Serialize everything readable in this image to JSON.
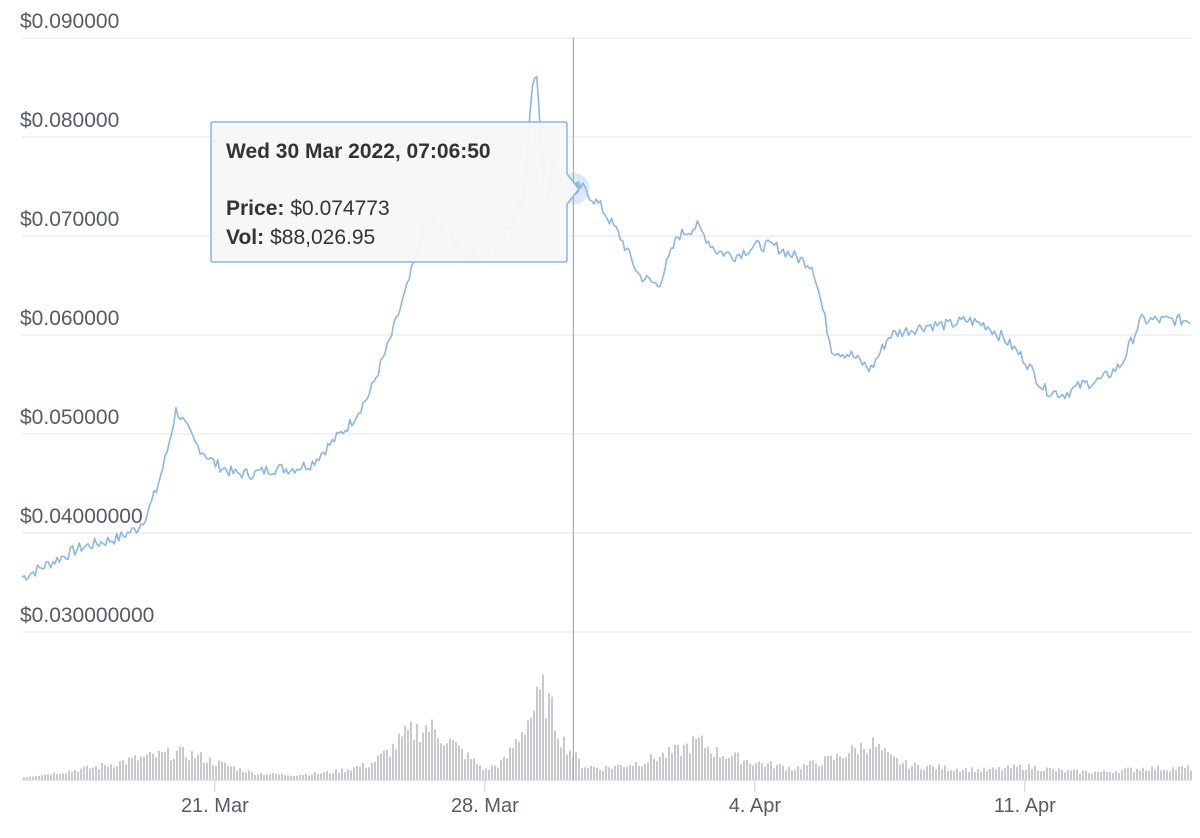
{
  "chart_data": {
    "type": "line",
    "title": "",
    "xlabel": "",
    "ylabel": "",
    "ylim": [
      0.0255,
      0.09
    ],
    "grid": true,
    "x_ticks": [
      "21. Mar",
      "28. Mar",
      "4. Apr",
      "11. Apr"
    ],
    "y_ticks": [
      "$0.030000000",
      "$0.04000000",
      "$0.050000",
      "$0.060000",
      "$0.070000",
      "$0.080000",
      "$0.090000"
    ],
    "y_tick_values": [
      0.03,
      0.04,
      0.05,
      0.06,
      0.07,
      0.08,
      0.09
    ],
    "colors": {
      "price": "#8ab6e8",
      "volume": "#c8c9d0",
      "grid": "#e6e6e6",
      "crosshair": "#a8aab0"
    },
    "price_series": {
      "name": "Price",
      "x": [
        "2022-03-16 00:00",
        "2022-03-16 12:00",
        "2022-03-17 00:00",
        "2022-03-17 12:00",
        "2022-03-18 00:00",
        "2022-03-18 12:00",
        "2022-03-19 00:00",
        "2022-03-19 06:00",
        "2022-03-19 12:00",
        "2022-03-19 18:00",
        "2022-03-20 00:00",
        "2022-03-20 12:00",
        "2022-03-21 00:00",
        "2022-03-21 12:00",
        "2022-03-22 00:00",
        "2022-03-22 12:00",
        "2022-03-23 00:00",
        "2022-03-23 12:00",
        "2022-03-24 00:00",
        "2022-03-24 12:00",
        "2022-03-25 00:00",
        "2022-03-25 12:00",
        "2022-03-26 00:00",
        "2022-03-26 12:00",
        "2022-03-27 00:00",
        "2022-03-27 12:00",
        "2022-03-28 00:00",
        "2022-03-28 12:00",
        "2022-03-29 00:00",
        "2022-03-29 06:00",
        "2022-03-29 09:00",
        "2022-03-29 12:00",
        "2022-03-29 15:00",
        "2022-03-29 18:00",
        "2022-03-30 00:00",
        "2022-03-30 07:06",
        "2022-03-30 12:00",
        "2022-03-31 00:00",
        "2022-03-31 12:00",
        "2022-04-01 00:00",
        "2022-04-01 12:00",
        "2022-04-02 00:00",
        "2022-04-02 12:00",
        "2022-04-03 00:00",
        "2022-04-03 12:00",
        "2022-04-04 00:00",
        "2022-04-04 12:00",
        "2022-04-05 00:00",
        "2022-04-05 12:00",
        "2022-04-06 00:00",
        "2022-04-06 12:00",
        "2022-04-07 00:00",
        "2022-04-07 12:00",
        "2022-04-08 00:00",
        "2022-04-08 12:00",
        "2022-04-09 00:00",
        "2022-04-09 12:00",
        "2022-04-10 00:00",
        "2022-04-10 12:00",
        "2022-04-11 00:00",
        "2022-04-11 12:00",
        "2022-04-12 00:00",
        "2022-04-12 12:00",
        "2022-04-13 00:00",
        "2022-04-13 12:00",
        "2022-04-14 00:00"
      ],
      "values": [
        0.0355,
        0.0365,
        0.0375,
        0.0385,
        0.039,
        0.0395,
        0.0405,
        0.042,
        0.0445,
        0.048,
        0.0525,
        0.049,
        0.047,
        0.046,
        0.046,
        0.0465,
        0.0465,
        0.047,
        0.049,
        0.051,
        0.054,
        0.059,
        0.065,
        0.072,
        0.07,
        0.0685,
        0.068,
        0.07,
        0.074,
        0.086,
        0.0855,
        0.076,
        0.074,
        0.0775,
        0.0755,
        0.074773,
        0.075,
        0.073,
        0.07,
        0.066,
        0.065,
        0.07,
        0.071,
        0.0685,
        0.068,
        0.069,
        0.069,
        0.068,
        0.067,
        0.0585,
        0.058,
        0.0565,
        0.06,
        0.0605,
        0.061,
        0.061,
        0.0615,
        0.061,
        0.0595,
        0.0575,
        0.0545,
        0.054,
        0.055,
        0.0555,
        0.057,
        0.0615
      ]
    },
    "volume_series": {
      "name": "Vol",
      "x": [
        "2022-03-16 00:00",
        "2022-03-17 00:00",
        "2022-03-18 00:00",
        "2022-03-19 00:00",
        "2022-03-20 00:00",
        "2022-03-20 12:00",
        "2022-03-21 00:00",
        "2022-03-22 00:00",
        "2022-03-23 00:00",
        "2022-03-24 00:00",
        "2022-03-25 00:00",
        "2022-03-25 12:00",
        "2022-03-26 00:00",
        "2022-03-26 12:00",
        "2022-03-27 00:00",
        "2022-03-27 12:00",
        "2022-03-28 00:00",
        "2022-03-28 12:00",
        "2022-03-29 00:00",
        "2022-03-29 12:00",
        "2022-03-30 00:00",
        "2022-03-30 12:00",
        "2022-03-31 00:00",
        "2022-04-01 00:00",
        "2022-04-02 00:00",
        "2022-04-02 12:00",
        "2022-04-03 00:00",
        "2022-04-04 00:00",
        "2022-04-05 00:00",
        "2022-04-06 00:00",
        "2022-04-06 12:00",
        "2022-04-07 00:00",
        "2022-04-07 12:00",
        "2022-04-08 00:00",
        "2022-04-09 00:00",
        "2022-04-10 00:00",
        "2022-04-11 00:00",
        "2022-04-12 00:00",
        "2022-04-13 00:00",
        "2022-04-14 00:00"
      ],
      "values": [
        3,
        8,
        14,
        22,
        28,
        25,
        18,
        7,
        5,
        8,
        16,
        30,
        48,
        55,
        42,
        25,
        10,
        20,
        55,
        90,
        40,
        15,
        12,
        18,
        30,
        40,
        28,
        18,
        12,
        22,
        30,
        38,
        22,
        15,
        12,
        10,
        14,
        9,
        8,
        12
      ],
      "unit": "relative"
    },
    "tooltip": {
      "title": "Wed 30 Mar 2022, 07:06:50",
      "price_label": "Price:",
      "price_value": "$0.074773",
      "vol_label": "Vol:",
      "vol_value": "$88,026.95"
    }
  }
}
